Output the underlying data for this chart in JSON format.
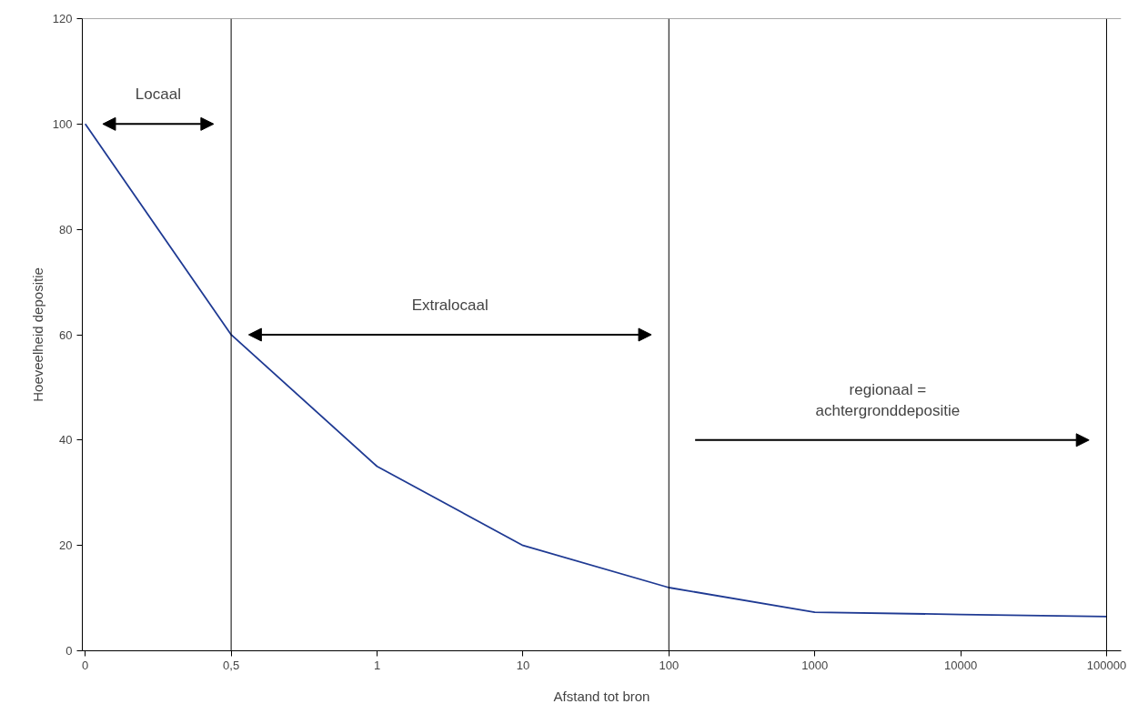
{
  "chart_data": {
    "type": "line",
    "xlabel": "Afstand tot bron",
    "ylabel": "Hoeveelheid depositie",
    "categories": [
      "0",
      "0,5",
      "1",
      "10",
      "100",
      "1000",
      "10000",
      "100000"
    ],
    "series": [
      {
        "color": "#1f3a93",
        "values": [
          100,
          60,
          35,
          20,
          12,
          7.3,
          6.9,
          6.5
        ]
      }
    ],
    "ylim": [
      0,
      120
    ],
    "yticks": [
      0,
      20,
      40,
      60,
      80,
      100,
      120
    ],
    "grid": false,
    "marker": "none",
    "line_style": "solid",
    "ref_lines": [
      {
        "axis": "x",
        "value": "0,5",
        "color": "#000000"
      },
      {
        "axis": "x",
        "value": "100",
        "color": "#000000"
      },
      {
        "axis": "x",
        "value": "100000",
        "color": "#000000"
      },
      {
        "axis": "y",
        "value": 120,
        "color": "#555555"
      }
    ],
    "annotations": [
      "Locaal",
      "Extralocaal",
      "regionaal =\nachtergronddepositie"
    ]
  }
}
